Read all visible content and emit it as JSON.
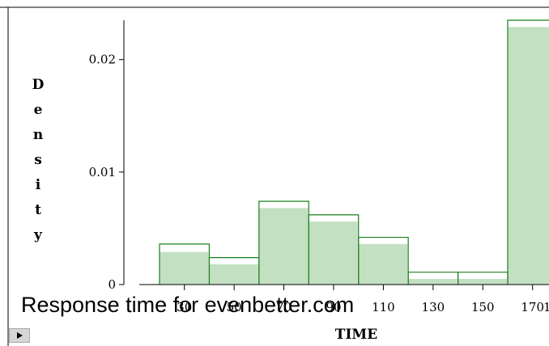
{
  "chart_data": {
    "type": "bar",
    "xlabel": "TIME",
    "ylabel": "Density",
    "ylim": [
      0,
      0.0235
    ],
    "xlim": [
      20,
      182
    ],
    "x_ticks": [
      30,
      50,
      70,
      90,
      110,
      130,
      150,
      170
    ],
    "x_tick_labels": [
      "30",
      "50",
      "70",
      "90",
      "110",
      "130",
      "150",
      "170"
    ],
    "y_ticks": [
      0,
      0.01,
      0.02
    ],
    "y_tick_labels": [
      "0",
      "0.01",
      "0.02"
    ],
    "bin_width": 20,
    "bins": [
      {
        "start": 20,
        "end": 40,
        "density": 0.0029,
        "outline": 0.0036
      },
      {
        "start": 40,
        "end": 60,
        "density": 0.0018,
        "outline": 0.0024
      },
      {
        "start": 60,
        "end": 80,
        "density": 0.0068,
        "outline": 0.0074
      },
      {
        "start": 80,
        "end": 100,
        "density": 0.0056,
        "outline": 0.0062
      },
      {
        "start": 100,
        "end": 120,
        "density": 0.0036,
        "outline": 0.0042
      },
      {
        "start": 120,
        "end": 140,
        "density": 0.0005,
        "outline": 0.0011
      },
      {
        "start": 140,
        "end": 160,
        "density": 0.0005,
        "outline": 0.0011
      },
      {
        "start": 160,
        "end": 180,
        "density": 0.0229,
        "outline": 0.0235
      }
    ],
    "colors": {
      "fill": "#c3e0c3",
      "outline": "#1a7f1a",
      "axis": "#000000"
    },
    "grid": false,
    "legend": "none"
  },
  "caption": "Response time for evenbetter.com"
}
